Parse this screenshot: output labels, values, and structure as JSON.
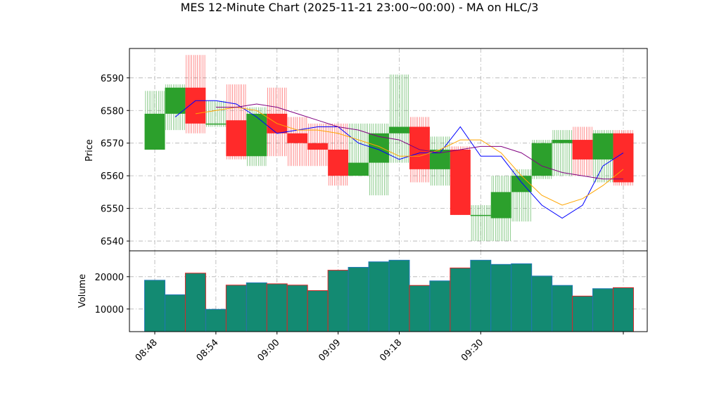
{
  "chart_data": {
    "type": "candlestick",
    "title": "MES 12-Minute Chart (2025-11-21 23:00~00:00) - MA on HLC/3",
    "x_tick_labels": [
      "08:48",
      "08:54",
      "09:00",
      "09:09",
      "09:18",
      "09:30"
    ],
    "price_panel": {
      "ylabel": "Price",
      "ylim": [
        6537,
        6599
      ],
      "y_ticks": [
        6540,
        6550,
        6560,
        6570,
        6580,
        6590
      ],
      "grid": true
    },
    "volume_panel": {
      "ylabel": "Volume",
      "ylim": [
        3000,
        28000
      ],
      "y_ticks": [
        10000,
        20000
      ],
      "grid": true
    },
    "candles": [
      {
        "open": 6568,
        "high": 6586,
        "low": 6568,
        "close": 6579,
        "volume": 18900
      },
      {
        "open": 6579,
        "high": 6588,
        "low": 6574,
        "close": 6587,
        "volume": 14400
      },
      {
        "open": 6587,
        "high": 6597,
        "low": 6573,
        "close": 6576,
        "volume": 21100
      },
      {
        "open": 6576,
        "high": 6583,
        "low": 6575,
        "close": 6576,
        "volume": 9900
      },
      {
        "open": 6577,
        "high": 6588,
        "low": 6565,
        "close": 6566,
        "volume": 17400
      },
      {
        "open": 6566,
        "high": 6581,
        "low": 6563,
        "close": 6579,
        "volume": 18100
      },
      {
        "open": 6579,
        "high": 6587,
        "low": 6566,
        "close": 6573,
        "volume": 17800
      },
      {
        "open": 6573,
        "high": 6578,
        "low": 6563,
        "close": 6570,
        "volume": 17400
      },
      {
        "open": 6570,
        "high": 6576,
        "low": 6563,
        "close": 6568,
        "volume": 15700
      },
      {
        "open": 6568,
        "high": 6576,
        "low": 6557,
        "close": 6560,
        "volume": 22000
      },
      {
        "open": 6560,
        "high": 6576,
        "low": 6560,
        "close": 6564,
        "volume": 22900
      },
      {
        "open": 6564,
        "high": 6576,
        "low": 6554,
        "close": 6573,
        "volume": 24600
      },
      {
        "open": 6573,
        "high": 6591,
        "low": 6564,
        "close": 6575,
        "volume": 25100
      },
      {
        "open": 6575,
        "high": 6578,
        "low": 6558,
        "close": 6562,
        "volume": 17300
      },
      {
        "open": 6562,
        "high": 6572,
        "low": 6557,
        "close": 6568,
        "volume": 18700
      },
      {
        "open": 6568,
        "high": 6569,
        "low": 6548,
        "close": 6548,
        "volume": 22700
      },
      {
        "open": 6548,
        "high": 6551,
        "low": 6540,
        "close": 6548,
        "volume": 25100
      },
      {
        "open": 6547,
        "high": 6560,
        "low": 6540,
        "close": 6555,
        "volume": 23800
      },
      {
        "open": 6555,
        "high": 6562,
        "low": 6546,
        "close": 6560,
        "volume": 24000
      },
      {
        "open": 6560,
        "high": 6571,
        "low": 6559,
        "close": 6570,
        "volume": 20200
      },
      {
        "open": 6570,
        "high": 6574,
        "low": 6560,
        "close": 6571,
        "volume": 17300
      },
      {
        "open": 6571,
        "high": 6575,
        "low": 6560,
        "close": 6565,
        "volume": 14000
      },
      {
        "open": 6565,
        "high": 6574,
        "low": 6558,
        "close": 6573,
        "volume": 16300
      },
      {
        "open": 6573,
        "high": 6574,
        "low": 6557,
        "close": 6558,
        "volume": 16600
      }
    ],
    "moving_averages": [
      {
        "color": "#0000ff",
        "values": [
          null,
          6578,
          6583,
          6583,
          6582,
          6578,
          6573,
          6574,
          6575,
          6575,
          6570,
          6568,
          6565,
          6567,
          6567,
          6575,
          6566,
          6566,
          6558,
          6551,
          6547,
          6551,
          6563,
          6567
        ]
      },
      {
        "color": "#ffa500",
        "values": [
          null,
          null,
          6579,
          6580,
          6581,
          6580,
          6576,
          6574,
          6574,
          6573,
          6571,
          6569,
          6566,
          6566,
          6568,
          6571,
          6571,
          6567,
          6560,
          6554,
          6551,
          6553,
          6557,
          6562
        ]
      },
      {
        "color": "#800080",
        "values": [
          null,
          null,
          null,
          6581,
          6581,
          6582,
          6581,
          6579,
          6577,
          6575,
          6574,
          6572,
          6571,
          6568,
          6567,
          6568,
          6569,
          6569,
          6567,
          6563,
          6561,
          6560,
          6559,
          6559
        ]
      }
    ],
    "colors": {
      "up": "#2ca02c",
      "down": "#ff2a2a",
      "volume_bar": "#138a72",
      "grid": "#b0b0b0"
    }
  }
}
